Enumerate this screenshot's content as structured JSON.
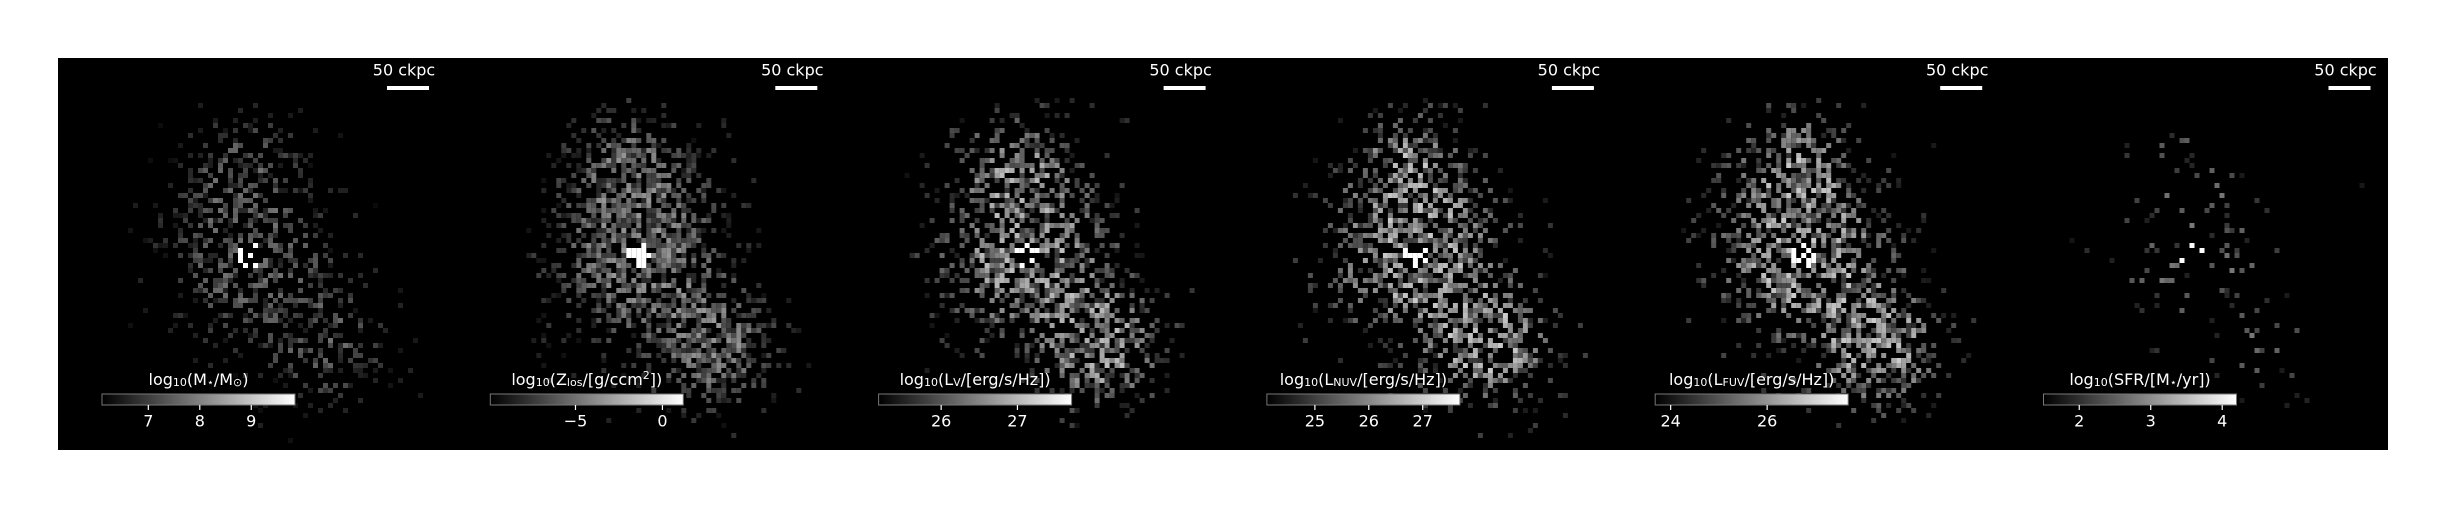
{
  "chart_data": [
    {
      "type": "image",
      "scale_label": "50 ckpc",
      "cmap": "gray",
      "cbar_label": [
        {
          "text": "log"
        },
        {
          "text": "10",
          "sub": true
        },
        {
          "text": "(M"
        },
        {
          "text": "⋆",
          "sub": true
        },
        {
          "text": "/M"
        },
        {
          "text": "⊙",
          "sub": true
        },
        {
          "text": ")"
        }
      ],
      "clim": [
        6.1,
        9.85
      ],
      "cbar_ticks": [
        7,
        8,
        9
      ]
    },
    {
      "type": "image",
      "scale_label": "50 ckpc",
      "cmap": "gray",
      "cbar_label": [
        {
          "text": "log"
        },
        {
          "text": "10",
          "sub": true
        },
        {
          "text": "(Z"
        },
        {
          "text": "los",
          "sub": true
        },
        {
          "text": "/[g/ccm"
        },
        {
          "text": "2",
          "sup": true
        },
        {
          "text": "])"
        }
      ],
      "clim": [
        -9.9,
        1.2
      ],
      "cbar_ticks": [
        {
          "value": -5,
          "label": "−5"
        },
        0
      ]
    },
    {
      "type": "image",
      "scale_label": "50 ckpc",
      "cmap": "gray",
      "cbar_label": [
        {
          "text": "log"
        },
        {
          "text": "10",
          "sub": true
        },
        {
          "text": "(L"
        },
        {
          "text": "V",
          "sub": true
        },
        {
          "text": "/[erg/s/Hz])"
        }
      ],
      "clim": [
        25.18,
        27.71
      ],
      "cbar_ticks": [
        26,
        27
      ]
    },
    {
      "type": "image",
      "scale_label": "50 ckpc",
      "cmap": "gray",
      "cbar_label": [
        {
          "text": "log"
        },
        {
          "text": "10",
          "sub": true
        },
        {
          "text": "(L"
        },
        {
          "text": "NUV",
          "sub": true
        },
        {
          "text": "/[erg/s/Hz])"
        }
      ],
      "clim": [
        24.11,
        27.69
      ],
      "cbar_ticks": [
        25,
        26,
        27
      ]
    },
    {
      "type": "image",
      "scale_label": "50 ckpc",
      "cmap": "gray",
      "cbar_label": [
        {
          "text": "log"
        },
        {
          "text": "10",
          "sub": true
        },
        {
          "text": "(L"
        },
        {
          "text": "FUV",
          "sub": true
        },
        {
          "text": "/[erg/s/Hz])"
        }
      ],
      "clim": [
        23.68,
        27.68
      ],
      "cbar_ticks": [
        24,
        26
      ]
    },
    {
      "type": "image",
      "scale_label": "50 ckpc",
      "cmap": "gray",
      "cbar_label": [
        {
          "text": "log"
        },
        {
          "text": "10",
          "sub": true
        },
        {
          "text": "(SFR/[M"
        },
        {
          "text": "⋆",
          "sub": true
        },
        {
          "text": "/yr])"
        }
      ],
      "clim": [
        1.5,
        4.2
      ],
      "cbar_ticks": [
        2,
        3,
        4
      ]
    }
  ]
}
